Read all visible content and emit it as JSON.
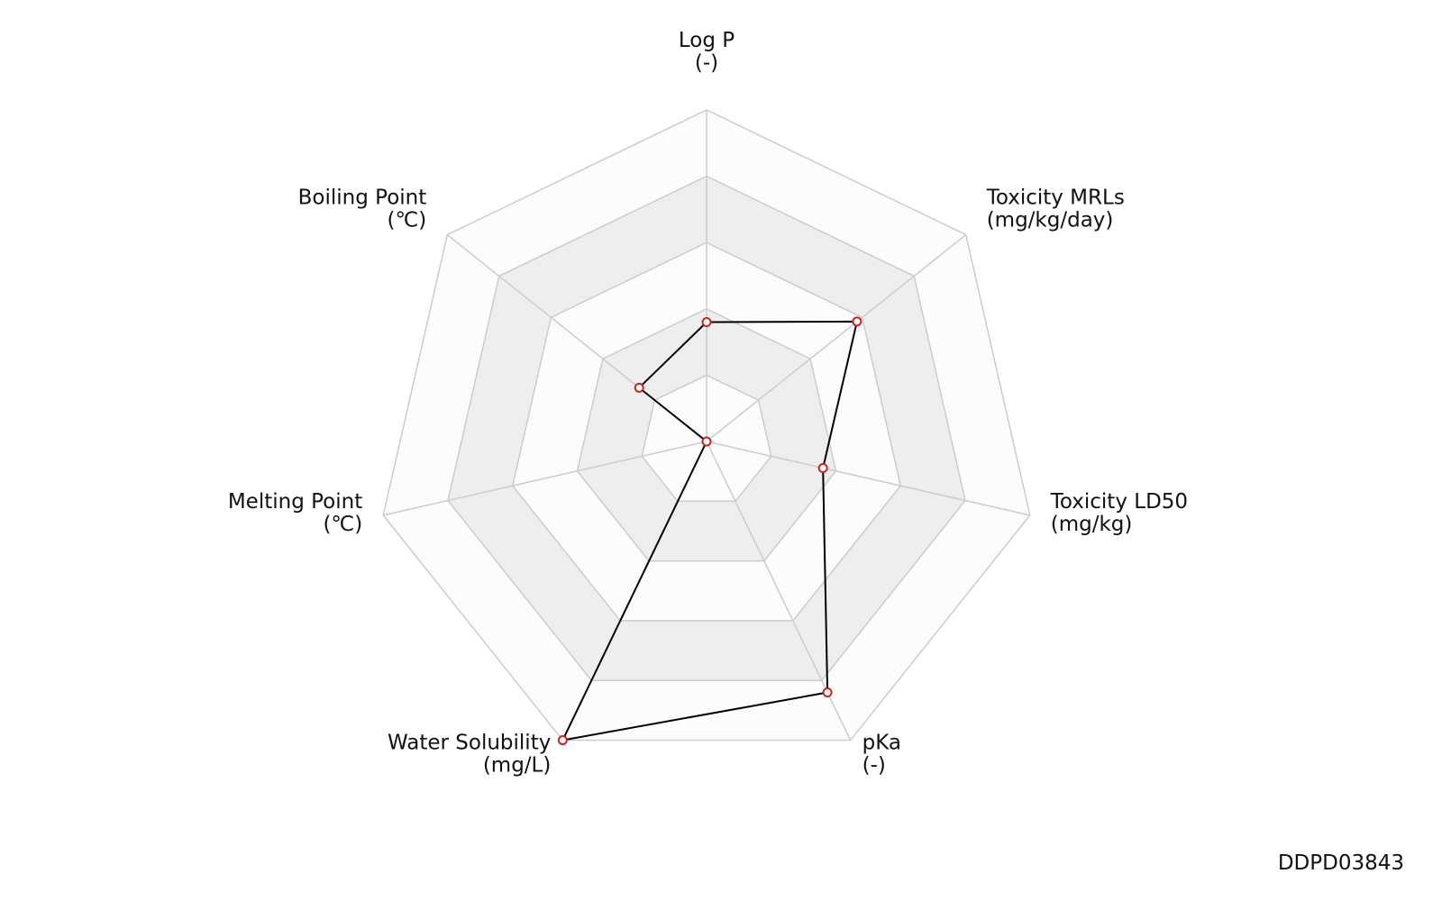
{
  "chart_data": {
    "type": "radar",
    "categories": [
      "Log P",
      "Toxicity MRLs",
      "Toxicity LD50",
      "pKa",
      "Water Solubility",
      "Melting Point",
      "Boiling Point"
    ],
    "units": [
      "(-)",
      "(mg/kg/day)",
      "(mg/kg)",
      "(-)",
      "(mg/L)",
      "(℃)",
      "(℃)"
    ],
    "values": [
      1.8,
      2.9,
      1.8,
      4.2,
      5,
      0,
      1.3
    ],
    "ylim": [
      0,
      5
    ],
    "yticks": [
      1,
      2,
      3,
      4,
      5
    ],
    "color": "#000000",
    "marker_color": "#cc2222",
    "band_colors": [
      "#fcfcfc",
      "#eeeeee"
    ],
    "grid_color": "#cccccc"
  },
  "footer": "DDPD03843"
}
